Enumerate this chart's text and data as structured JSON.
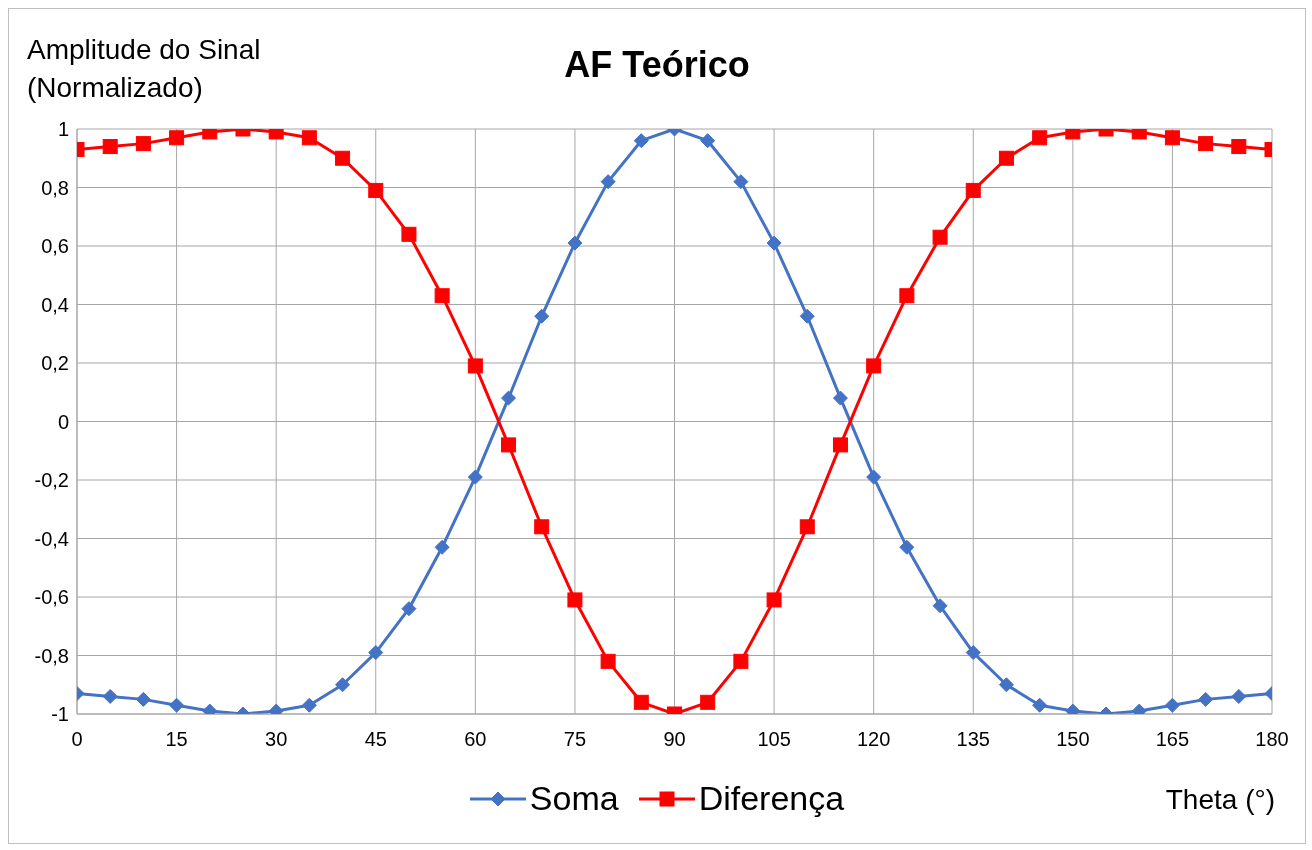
{
  "chart_data": {
    "type": "line",
    "title": "AF Teórico",
    "xlabel": "Theta (°)",
    "ylabel": "Amplitude do Sinal (Normalizado)",
    "x": [
      0,
      5,
      10,
      15,
      20,
      25,
      30,
      35,
      40,
      45,
      50,
      55,
      60,
      65,
      70,
      75,
      80,
      85,
      90,
      95,
      100,
      105,
      110,
      115,
      120,
      125,
      130,
      135,
      140,
      145,
      150,
      155,
      160,
      165,
      170,
      175,
      180
    ],
    "series": [
      {
        "name": "Soma",
        "color": "#4472c4",
        "marker": "diamond",
        "values": [
          -0.93,
          -0.94,
          -0.95,
          -0.97,
          -0.99,
          -1,
          -0.99,
          -0.97,
          -0.9,
          -0.79,
          -0.64,
          -0.43,
          -0.19,
          0.08,
          0.36,
          0.61,
          0.82,
          0.96,
          1,
          0.96,
          0.82,
          0.61,
          0.36,
          0.08,
          -0.19,
          -0.43,
          -0.63,
          -0.79,
          -0.9,
          -0.97,
          -0.99,
          -1,
          -0.99,
          -0.97,
          -0.95,
          -0.94,
          -0.93
        ]
      },
      {
        "name": "Diferença",
        "color": "#ff0000",
        "marker": "square",
        "values": [
          0.93,
          0.94,
          0.95,
          0.97,
          0.99,
          1,
          0.99,
          0.97,
          0.9,
          0.79,
          0.64,
          0.43,
          0.19,
          -0.08,
          -0.36,
          -0.61,
          -0.82,
          -0.96,
          -1,
          -0.96,
          -0.82,
          -0.61,
          -0.36,
          -0.08,
          0.19,
          0.43,
          0.63,
          0.79,
          0.9,
          0.97,
          0.99,
          1,
          0.99,
          0.97,
          0.95,
          0.94,
          0.93
        ]
      }
    ],
    "xlim": [
      0,
      180
    ],
    "xticks": [
      0,
      15,
      30,
      45,
      60,
      75,
      90,
      105,
      120,
      135,
      150,
      165,
      180
    ],
    "ylim": [
      -1,
      1
    ],
    "yticks": [
      -1,
      {
        "value": -0.8,
        "label": "-0,8"
      },
      {
        "value": -0.6,
        "label": "-0,6"
      },
      {
        "value": -0.4,
        "label": "-0,4"
      },
      {
        "value": -0.2,
        "label": "-0,2"
      },
      0,
      {
        "value": 0.2,
        "label": "0,2"
      },
      {
        "value": 0.4,
        "label": "0,4"
      },
      {
        "value": 0.6,
        "label": "0,6"
      },
      {
        "value": 0.8,
        "label": "0,8"
      },
      1
    ],
    "grid": true,
    "legend": "bottom",
    "line_style": "solid"
  }
}
